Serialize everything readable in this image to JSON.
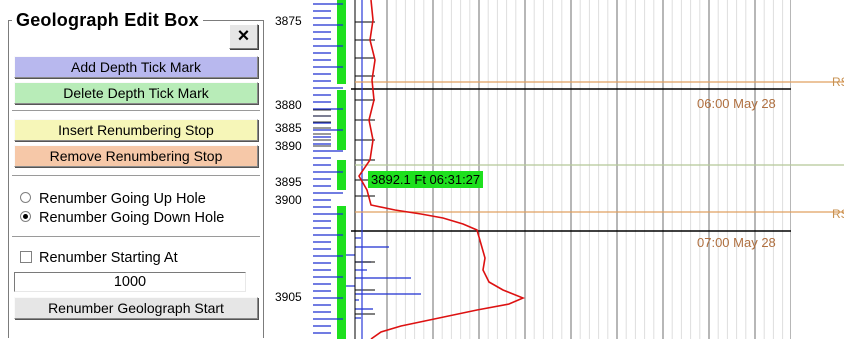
{
  "panel": {
    "title": "Geolograph Edit Box",
    "close_glyph": "×",
    "add_tick_label": "Add Depth Tick Mark",
    "delete_tick_label": "Delete Depth Tick Mark",
    "insert_stop_label": "Insert Renumbering Stop",
    "remove_stop_label": "Remove Renumbering Stop",
    "renumber_up_label": "Renumber Going Up Hole",
    "renumber_down_label": "Renumber Going Down Hole",
    "renumber_up_selected": false,
    "renumber_down_selected": true,
    "renumber_starting_at_label": "Renumber Starting At",
    "renumber_starting_at_checked": false,
    "start_value": "1000",
    "renumber_start_label": "Renumber Geolograph Start"
  },
  "geograph": {
    "depth_labels": [
      "3875",
      "3880",
      "3885",
      "3890",
      "3895",
      "3900",
      "3905"
    ],
    "time_labels": [
      "06:00 May 28",
      "07:00 May 28"
    ],
    "stop_marker_labels": [
      "RS",
      "RS"
    ],
    "cursor_readout": "3892.1 Ft  06:31:27",
    "colors": {
      "stop_line": "#e0a060",
      "cursor_line": "#b4c898",
      "depth_ticks": "#1c2fd0",
      "trace": "#dd1111",
      "highlight": "#1ee01e",
      "grid": "#bcbcbc"
    }
  }
}
